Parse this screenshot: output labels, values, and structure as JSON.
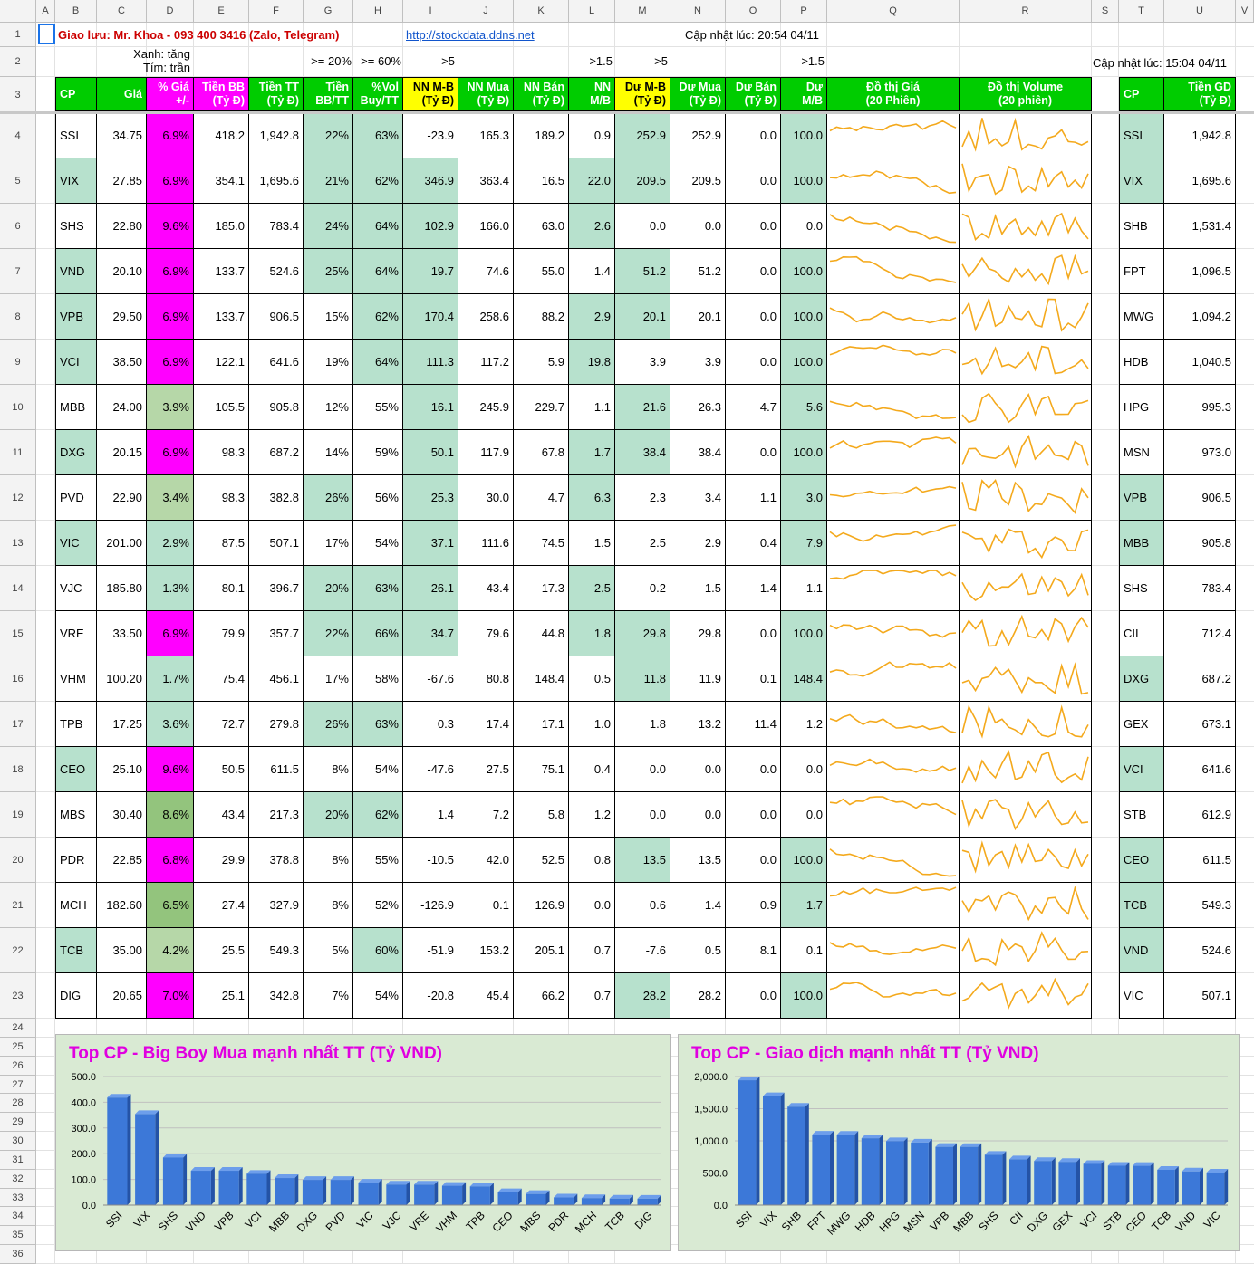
{
  "column_headers": [
    "A",
    "B",
    "C",
    "D",
    "E",
    "F",
    "G",
    "H",
    "I",
    "J",
    "K",
    "L",
    "M",
    "N",
    "O",
    "P",
    "Q",
    "R",
    "S",
    "T",
    "U",
    "V"
  ],
  "row_numbers": [
    "1",
    "2",
    "3",
    "4",
    "5",
    "6",
    "7",
    "8",
    "9",
    "10",
    "11",
    "12",
    "13",
    "14",
    "15",
    "16",
    "17",
    "18",
    "19",
    "20",
    "21",
    "22",
    "23",
    "24",
    "25",
    "26",
    "27",
    "28",
    "29",
    "30",
    "31",
    "32",
    "33",
    "34",
    "35",
    "36"
  ],
  "top": {
    "contact": "Giao lưu: Mr. Khoa - 093 400 3416 (Zalo, Telegram)",
    "link": "http://stockdata.ddns.net",
    "update_left": "Cập nhật lúc: 20:54 04/11",
    "update_right": "Cập nhật lúc: 15:04 04/11",
    "legend_green": "Xanh: tăng",
    "legend_purple": "Tím: trần",
    "thresholds": {
      "g": ">= 20%",
      "h": ">= 60%",
      "i": ">5",
      "l": ">1.5",
      "m": ">5",
      "p": ">1.5"
    }
  },
  "colors": {
    "green": "#00cc00",
    "magenta": "#ff00ff",
    "yellow": "#ffff00",
    "light_green": "#b7e1cd",
    "mid_green": "#93c47d",
    "pale_green": "#b6d7a8",
    "sparkline": "#f4a91c",
    "bar": "#3c78d8",
    "chart_title": "#e000e0"
  },
  "main_table": {
    "headers": [
      {
        "l1": "CP",
        "l2": ""
      },
      {
        "l1": "Giá",
        "l2": ""
      },
      {
        "l1": "% Giá",
        "l2": "+/-"
      },
      {
        "l1": "Tiền BB",
        "l2": "(Tỷ Đ)"
      },
      {
        "l1": "Tiền TT",
        "l2": "(Tỷ Đ)"
      },
      {
        "l1": "Tiền",
        "l2": "BB/TT"
      },
      {
        "l1": "%Vol",
        "l2": "Buy/TT"
      },
      {
        "l1": "NN M-B",
        "l2": "(Tỷ Đ)"
      },
      {
        "l1": "NN Mua",
        "l2": "(Tỷ Đ)"
      },
      {
        "l1": "NN Bán",
        "l2": "(Tỷ Đ)"
      },
      {
        "l1": "NN",
        "l2": "M/B"
      },
      {
        "l1": "Dư M-B",
        "l2": "(Tỷ Đ)"
      },
      {
        "l1": "Dư Mua",
        "l2": "(Tỷ Đ)"
      },
      {
        "l1": "Dư Bán",
        "l2": "(Tỷ Đ)"
      },
      {
        "l1": "Dư",
        "l2": "M/B"
      },
      {
        "l1": "Đồ thị Giá",
        "l2": "(20 Phiên)"
      },
      {
        "l1": "Đồ thị Volume",
        "l2": "(20 phiên)"
      }
    ],
    "rows": [
      [
        "SSI",
        "34.75",
        "6.9%",
        "418.2",
        "1,942.8",
        "22%",
        "63%",
        "-23.9",
        "165.3",
        "189.2",
        "0.9",
        "252.9",
        "252.9",
        "0.0",
        "100.0"
      ],
      [
        "VIX",
        "27.85",
        "6.9%",
        "354.1",
        "1,695.6",
        "21%",
        "62%",
        "346.9",
        "363.4",
        "16.5",
        "22.0",
        "209.5",
        "209.5",
        "0.0",
        "100.0"
      ],
      [
        "SHS",
        "22.80",
        "9.6%",
        "185.0",
        "783.4",
        "24%",
        "64%",
        "102.9",
        "166.0",
        "63.0",
        "2.6",
        "0.0",
        "0.0",
        "0.0",
        "0.0"
      ],
      [
        "VND",
        "20.10",
        "6.9%",
        "133.7",
        "524.6",
        "25%",
        "64%",
        "19.7",
        "74.6",
        "55.0",
        "1.4",
        "51.2",
        "51.2",
        "0.0",
        "100.0"
      ],
      [
        "VPB",
        "29.50",
        "6.9%",
        "133.7",
        "906.5",
        "15%",
        "62%",
        "170.4",
        "258.6",
        "88.2",
        "2.9",
        "20.1",
        "20.1",
        "0.0",
        "100.0"
      ],
      [
        "VCI",
        "38.50",
        "6.9%",
        "122.1",
        "641.6",
        "19%",
        "64%",
        "111.3",
        "117.2",
        "5.9",
        "19.8",
        "3.9",
        "3.9",
        "0.0",
        "100.0"
      ],
      [
        "MBB",
        "24.00",
        "3.9%",
        "105.5",
        "905.8",
        "12%",
        "55%",
        "16.1",
        "245.9",
        "229.7",
        "1.1",
        "21.6",
        "26.3",
        "4.7",
        "5.6"
      ],
      [
        "DXG",
        "20.15",
        "6.9%",
        "98.3",
        "687.2",
        "14%",
        "59%",
        "50.1",
        "117.9",
        "67.8",
        "1.7",
        "38.4",
        "38.4",
        "0.0",
        "100.0"
      ],
      [
        "PVD",
        "22.90",
        "3.4%",
        "98.3",
        "382.8",
        "26%",
        "56%",
        "25.3",
        "30.0",
        "4.7",
        "6.3",
        "2.3",
        "3.4",
        "1.1",
        "3.0"
      ],
      [
        "VIC",
        "201.00",
        "2.9%",
        "87.5",
        "507.1",
        "17%",
        "54%",
        "37.1",
        "111.6",
        "74.5",
        "1.5",
        "2.5",
        "2.9",
        "0.4",
        "7.9"
      ],
      [
        "VJC",
        "185.80",
        "1.3%",
        "80.1",
        "396.7",
        "20%",
        "63%",
        "26.1",
        "43.4",
        "17.3",
        "2.5",
        "0.2",
        "1.5",
        "1.4",
        "1.1"
      ],
      [
        "VRE",
        "33.50",
        "6.9%",
        "79.9",
        "357.7",
        "22%",
        "66%",
        "34.7",
        "79.6",
        "44.8",
        "1.8",
        "29.8",
        "29.8",
        "0.0",
        "100.0"
      ],
      [
        "VHM",
        "100.20",
        "1.7%",
        "75.4",
        "456.1",
        "17%",
        "58%",
        "-67.6",
        "80.8",
        "148.4",
        "0.5",
        "11.8",
        "11.9",
        "0.1",
        "148.4"
      ],
      [
        "TPB",
        "17.25",
        "3.6%",
        "72.7",
        "279.8",
        "26%",
        "63%",
        "0.3",
        "17.4",
        "17.1",
        "1.0",
        "1.8",
        "13.2",
        "11.4",
        "1.2"
      ],
      [
        "CEO",
        "25.10",
        "9.6%",
        "50.5",
        "611.5",
        "8%",
        "54%",
        "-47.6",
        "27.5",
        "75.1",
        "0.4",
        "0.0",
        "0.0",
        "0.0",
        "0.0"
      ],
      [
        "MBS",
        "30.40",
        "8.6%",
        "43.4",
        "217.3",
        "20%",
        "62%",
        "1.4",
        "7.2",
        "5.8",
        "1.2",
        "0.0",
        "0.0",
        "0.0",
        "0.0"
      ],
      [
        "PDR",
        "22.85",
        "6.8%",
        "29.9",
        "378.8",
        "8%",
        "55%",
        "-10.5",
        "42.0",
        "52.5",
        "0.8",
        "13.5",
        "13.5",
        "0.0",
        "100.0"
      ],
      [
        "MCH",
        "182.60",
        "6.5%",
        "27.4",
        "327.9",
        "8%",
        "52%",
        "-126.9",
        "0.1",
        "126.9",
        "0.0",
        "0.6",
        "1.4",
        "0.9",
        "1.7"
      ],
      [
        "TCB",
        "35.00",
        "4.2%",
        "25.5",
        "549.3",
        "5%",
        "60%",
        "-51.9",
        "153.2",
        "205.1",
        "0.7",
        "-7.6",
        "0.5",
        "8.1",
        "0.1"
      ],
      [
        "DIG",
        "20.65",
        "7.0%",
        "25.1",
        "342.8",
        "7%",
        "54%",
        "-20.8",
        "45.4",
        "66.2",
        "0.7",
        "28.2",
        "28.2",
        "0.0",
        "100.0"
      ]
    ]
  },
  "side_table": {
    "headers": [
      {
        "l1": "CP",
        "l2": ""
      },
      {
        "l1": "Tiền GD",
        "l2": "(Tỷ Đ)"
      }
    ],
    "rows": [
      [
        "SSI",
        "1,942.8"
      ],
      [
        "VIX",
        "1,695.6"
      ],
      [
        "SHB",
        "1,531.4"
      ],
      [
        "FPT",
        "1,096.5"
      ],
      [
        "MWG",
        "1,094.2"
      ],
      [
        "HDB",
        "1,040.5"
      ],
      [
        "HPG",
        "995.3"
      ],
      [
        "MSN",
        "973.0"
      ],
      [
        "VPB",
        "906.5"
      ],
      [
        "MBB",
        "905.8"
      ],
      [
        "SHS",
        "783.4"
      ],
      [
        "CII",
        "712.4"
      ],
      [
        "DXG",
        "687.2"
      ],
      [
        "GEX",
        "673.1"
      ],
      [
        "VCI",
        "641.6"
      ],
      [
        "STB",
        "612.9"
      ],
      [
        "CEO",
        "611.5"
      ],
      [
        "TCB",
        "549.3"
      ],
      [
        "VND",
        "524.6"
      ],
      [
        "VIC",
        "507.1"
      ]
    ]
  },
  "chart_data": [
    {
      "type": "bar",
      "title": "Top CP - Big Boy Mua mạnh nhất TT (Tỷ VND)",
      "xlabel": "",
      "ylabel": "",
      "ylim": [
        0,
        500
      ],
      "yticks": [
        "0.0",
        "100.0",
        "200.0",
        "300.0",
        "400.0",
        "500.0"
      ],
      "grid": true,
      "categories": [
        "SSI",
        "VIX",
        "SHS",
        "VND",
        "VPB",
        "VCI",
        "MBB",
        "DXG",
        "PVD",
        "VIC",
        "VJC",
        "VRE",
        "VHM",
        "TPB",
        "CEO",
        "MBS",
        "PDR",
        "MCH",
        "TCB",
        "DIG"
      ],
      "values": [
        418.2,
        354.1,
        185.0,
        133.7,
        133.7,
        122.1,
        105.5,
        98.3,
        98.3,
        87.5,
        80.1,
        79.9,
        75.4,
        72.7,
        50.5,
        43.4,
        29.9,
        27.4,
        25.5,
        25.1
      ]
    },
    {
      "type": "bar",
      "title": "Top CP - Giao dịch mạnh nhất TT (Tỷ VND)",
      "xlabel": "",
      "ylabel": "",
      "ylim": [
        0,
        2000
      ],
      "yticks": [
        "0.0",
        "500.0",
        "1,000.0",
        "1,500.0",
        "2,000.0"
      ],
      "grid": true,
      "categories": [
        "SSI",
        "VIX",
        "SHB",
        "FPT",
        "MWG",
        "HDB",
        "HPG",
        "MSN",
        "VPB",
        "MBB",
        "SHS",
        "CII",
        "DXG",
        "GEX",
        "VCI",
        "STB",
        "CEO",
        "TCB",
        "VND",
        "VIC"
      ],
      "values": [
        1942.8,
        1695.6,
        1531.4,
        1096.5,
        1094.2,
        1040.5,
        995.3,
        973.0,
        906.5,
        905.8,
        783.4,
        712.4,
        687.2,
        673.1,
        641.6,
        612.9,
        611.5,
        549.3,
        524.6,
        507.1
      ]
    }
  ]
}
